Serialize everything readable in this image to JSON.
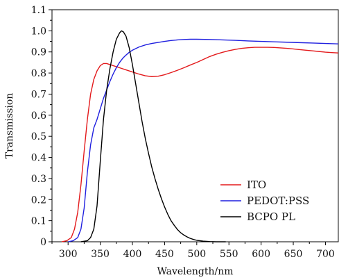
{
  "chart_data": {
    "type": "line",
    "title": "",
    "xlabel": "Wavelength/nm",
    "ylabel": "Transmission",
    "xlim": [
      275,
      720
    ],
    "ylim": [
      0,
      1.1
    ],
    "x_ticks": [
      300,
      350,
      400,
      450,
      500,
      550,
      600,
      650,
      700
    ],
    "x_tick_labels": [
      "300",
      "350",
      "400",
      "450",
      "500",
      "550",
      "600",
      "650",
      "700"
    ],
    "y_ticks": [
      0,
      0.1,
      0.2,
      0.3,
      0.4,
      0.5,
      0.6,
      0.7,
      0.8,
      0.9,
      1.0,
      1.1
    ],
    "y_tick_labels": [
      "0",
      "0.1",
      "0.2",
      "0.3",
      "0.4",
      "0.5",
      "0.6",
      "0.7",
      "0.8",
      "0.9",
      "1.0",
      "1.1"
    ],
    "grid": false,
    "legend_position": "bottom-right",
    "series": [
      {
        "name": "ITO",
        "color": "#e31a1c",
        "points": [
          [
            290,
            0
          ],
          [
            298,
            0.005
          ],
          [
            305,
            0.02
          ],
          [
            310,
            0.06
          ],
          [
            315,
            0.14
          ],
          [
            320,
            0.27
          ],
          [
            325,
            0.43
          ],
          [
            330,
            0.58
          ],
          [
            335,
            0.7
          ],
          [
            340,
            0.77
          ],
          [
            345,
            0.81
          ],
          [
            350,
            0.835
          ],
          [
            355,
            0.845
          ],
          [
            360,
            0.845
          ],
          [
            365,
            0.84
          ],
          [
            370,
            0.835
          ],
          [
            380,
            0.825
          ],
          [
            390,
            0.815
          ],
          [
            400,
            0.805
          ],
          [
            410,
            0.795
          ],
          [
            420,
            0.787
          ],
          [
            430,
            0.783
          ],
          [
            440,
            0.785
          ],
          [
            450,
            0.792
          ],
          [
            460,
            0.802
          ],
          [
            470,
            0.813
          ],
          [
            480,
            0.825
          ],
          [
            490,
            0.838
          ],
          [
            500,
            0.85
          ],
          [
            510,
            0.864
          ],
          [
            520,
            0.878
          ],
          [
            530,
            0.889
          ],
          [
            540,
            0.898
          ],
          [
            550,
            0.906
          ],
          [
            560,
            0.912
          ],
          [
            570,
            0.917
          ],
          [
            580,
            0.92
          ],
          [
            590,
            0.922
          ],
          [
            600,
            0.922
          ],
          [
            610,
            0.922
          ],
          [
            620,
            0.921
          ],
          [
            630,
            0.919
          ],
          [
            640,
            0.917
          ],
          [
            650,
            0.914
          ],
          [
            660,
            0.911
          ],
          [
            670,
            0.908
          ],
          [
            680,
            0.905
          ],
          [
            690,
            0.902
          ],
          [
            700,
            0.899
          ],
          [
            710,
            0.897
          ],
          [
            720,
            0.895
          ]
        ]
      },
      {
        "name": "PEDOT:PSS",
        "color": "#1f1fdf",
        "points": [
          [
            300,
            0
          ],
          [
            308,
            0.005
          ],
          [
            315,
            0.02
          ],
          [
            320,
            0.06
          ],
          [
            325,
            0.16
          ],
          [
            330,
            0.33
          ],
          [
            335,
            0.46
          ],
          [
            340,
            0.54
          ],
          [
            345,
            0.58
          ],
          [
            350,
            0.63
          ],
          [
            355,
            0.68
          ],
          [
            360,
            0.72
          ],
          [
            365,
            0.76
          ],
          [
            370,
            0.795
          ],
          [
            375,
            0.825
          ],
          [
            380,
            0.85
          ],
          [
            385,
            0.87
          ],
          [
            390,
            0.885
          ],
          [
            395,
            0.898
          ],
          [
            400,
            0.908
          ],
          [
            410,
            0.923
          ],
          [
            420,
            0.933
          ],
          [
            430,
            0.94
          ],
          [
            440,
            0.945
          ],
          [
            450,
            0.95
          ],
          [
            460,
            0.954
          ],
          [
            470,
            0.957
          ],
          [
            480,
            0.959
          ],
          [
            490,
            0.96
          ],
          [
            500,
            0.96
          ],
          [
            520,
            0.959
          ],
          [
            540,
            0.957
          ],
          [
            560,
            0.955
          ],
          [
            580,
            0.952
          ],
          [
            600,
            0.95
          ],
          [
            620,
            0.948
          ],
          [
            640,
            0.946
          ],
          [
            660,
            0.944
          ],
          [
            680,
            0.942
          ],
          [
            700,
            0.94
          ],
          [
            720,
            0.938
          ]
        ]
      },
      {
        "name": "BCPO PL",
        "color": "#000000",
        "points": [
          [
            320,
            0
          ],
          [
            330,
            0.005
          ],
          [
            335,
            0.02
          ],
          [
            340,
            0.06
          ],
          [
            345,
            0.17
          ],
          [
            350,
            0.38
          ],
          [
            355,
            0.58
          ],
          [
            360,
            0.72
          ],
          [
            365,
            0.82
          ],
          [
            370,
            0.9
          ],
          [
            375,
            0.96
          ],
          [
            380,
            0.99
          ],
          [
            383,
            1.0
          ],
          [
            386,
            0.995
          ],
          [
            390,
            0.975
          ],
          [
            395,
            0.92
          ],
          [
            400,
            0.84
          ],
          [
            405,
            0.75
          ],
          [
            410,
            0.66
          ],
          [
            415,
            0.57
          ],
          [
            420,
            0.49
          ],
          [
            425,
            0.42
          ],
          [
            430,
            0.355
          ],
          [
            435,
            0.3
          ],
          [
            440,
            0.25
          ],
          [
            445,
            0.205
          ],
          [
            450,
            0.165
          ],
          [
            455,
            0.13
          ],
          [
            460,
            0.1
          ],
          [
            465,
            0.078
          ],
          [
            470,
            0.058
          ],
          [
            475,
            0.043
          ],
          [
            480,
            0.032
          ],
          [
            485,
            0.023
          ],
          [
            490,
            0.016
          ],
          [
            495,
            0.011
          ],
          [
            500,
            0.007
          ],
          [
            510,
            0.003
          ],
          [
            520,
            0.001
          ],
          [
            530,
            0.0
          ],
          [
            545,
            0.0
          ]
        ]
      }
    ]
  }
}
